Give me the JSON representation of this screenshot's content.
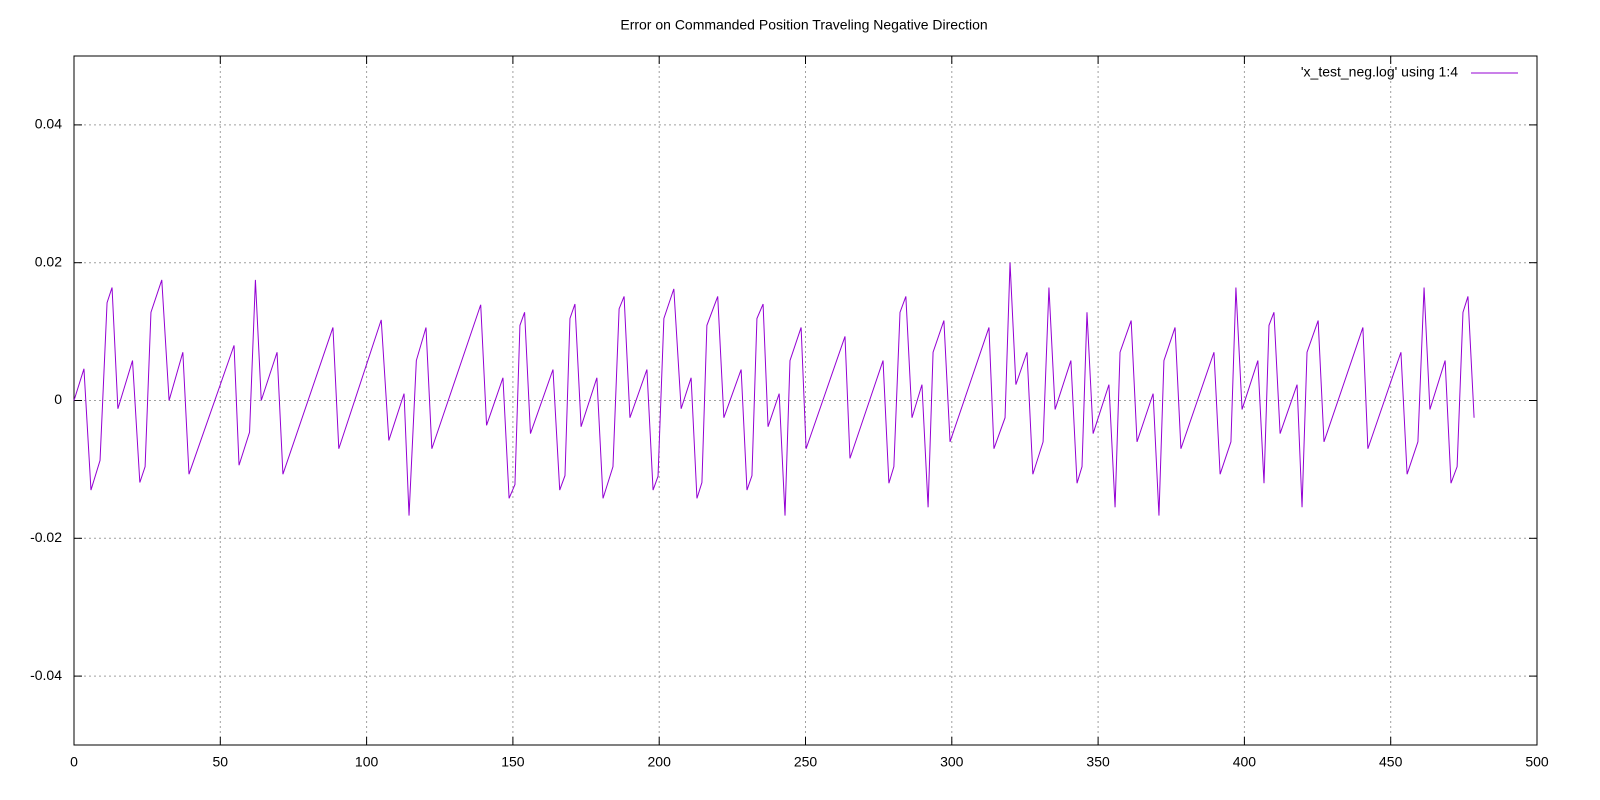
{
  "chart_data": {
    "type": "line",
    "title": "Error on Commanded Position Traveling Negative Direction",
    "x": [
      0,
      3.4,
      5.8,
      8.9,
      11.3,
      13,
      15,
      20,
      22.5,
      24.3,
      26.3,
      30,
      32.5,
      37.2,
      39.3,
      54.7,
      56.4,
      60,
      62,
      64,
      69.4,
      71.4,
      88.5,
      90.5,
      105,
      107.6,
      112.8,
      114.5,
      117,
      120.3,
      122.3,
      139,
      141,
      146.6,
      148.7,
      150.7,
      152.4,
      154,
      156,
      163.7,
      166,
      167.8,
      169.5,
      171.2,
      173.3,
      178.7,
      180.8,
      184.2,
      186.3,
      188,
      190,
      195.8,
      197.9,
      199.6,
      201.6,
      205,
      207.5,
      210.9,
      212.9,
      214.6,
      216.3,
      220,
      222.1,
      228,
      230,
      231.7,
      233.4,
      235.5,
      237.2,
      241,
      243,
      244.7,
      248.5,
      250.2,
      263.5,
      265.2,
      276.5,
      278.5,
      280.2,
      282.3,
      284.3,
      286.4,
      289.8,
      291.9,
      293.6,
      297.3,
      299.4,
      312.7,
      314.4,
      318.2,
      319.9,
      321.9,
      325.7,
      327.7,
      331.2,
      333.2,
      335.3,
      340.7,
      342.8,
      344.5,
      346.2,
      348.3,
      353.7,
      355.8,
      357.5,
      361.3,
      363.3,
      368.8,
      370.8,
      372.5,
      376.3,
      378.3,
      389.6,
      391.7,
      395.4,
      397.1,
      399.2,
      404.6,
      406.7,
      408.4,
      410.1,
      412.2,
      418,
      419.7,
      421.4,
      425.2,
      427.2,
      440.5,
      442.2,
      453.5,
      455.6,
      459.3,
      461.4,
      463.4,
      468.6,
      470.6,
      472.7,
      474.7,
      476.4,
      478.5
    ],
    "series": [
      {
        "name": "'x_test_neg.log' using 1:4",
        "color": "#9400d3",
        "values": [
          0,
          0.0046,
          -0.013,
          -0.0087,
          0.0142,
          0.0164,
          -0.0012,
          0.0058,
          -0.0119,
          -0.0096,
          0.0128,
          0.0175,
          0,
          0.007,
          -0.0107,
          0.008,
          -0.0094,
          -0.0046,
          0.0175,
          0,
          0.007,
          -0.0107,
          0.0106,
          -0.007,
          0.0117,
          -0.0058,
          0.001,
          -0.0167,
          0.0058,
          0.0106,
          -0.007,
          0.0139,
          -0.0036,
          0.0033,
          -0.0142,
          -0.0122,
          0.0109,
          0.0128,
          -0.0048,
          0.0045,
          -0.013,
          -0.0109,
          0.0119,
          0.014,
          -0.0038,
          0.0033,
          -0.0142,
          -0.0096,
          0.0133,
          0.0151,
          -0.0025,
          0.0045,
          -0.013,
          -0.011,
          0.0119,
          0.0162,
          -0.0012,
          0.0033,
          -0.0142,
          -0.0119,
          0.0109,
          0.0151,
          -0.0025,
          0.0045,
          -0.013,
          -0.0109,
          0.0119,
          0.014,
          -0.0038,
          0.001,
          -0.0167,
          0.0058,
          0.0106,
          -0.007,
          0.0093,
          -0.0084,
          0.0058,
          -0.012,
          -0.0096,
          0.0128,
          0.0151,
          -0.0025,
          0.0023,
          -0.0155,
          0.007,
          0.0116,
          -0.006,
          0.0106,
          -0.007,
          -0.0025,
          0.02,
          0.0023,
          0.007,
          -0.0107,
          -0.006,
          0.0164,
          -0.0013,
          0.0058,
          -0.012,
          -0.0096,
          0.0128,
          -0.0048,
          0.0023,
          -0.0155,
          0.007,
          0.0116,
          -0.006,
          0.001,
          -0.0167,
          0.0058,
          0.0106,
          -0.007,
          0.007,
          -0.0107,
          -0.006,
          0.0164,
          -0.0013,
          0.0058,
          -0.012,
          0.0109,
          0.0128,
          -0.0048,
          0.0023,
          -0.0155,
          0.007,
          0.0116,
          -0.006,
          0.0106,
          -0.007,
          0.007,
          -0.0107,
          -0.006,
          0.0164,
          -0.0013,
          0.0058,
          -0.012,
          -0.0096,
          0.0128,
          0.0151,
          -0.0025
        ]
      }
    ],
    "xlim": [
      0,
      500
    ],
    "xticks": [
      0,
      50,
      100,
      150,
      200,
      250,
      300,
      350,
      400,
      450,
      500
    ],
    "ylim": [
      -0.05,
      0.05
    ],
    "yticks": [
      -0.04,
      -0.02,
      0,
      0.02,
      0.04
    ],
    "grid": true,
    "legend": "top-right"
  }
}
